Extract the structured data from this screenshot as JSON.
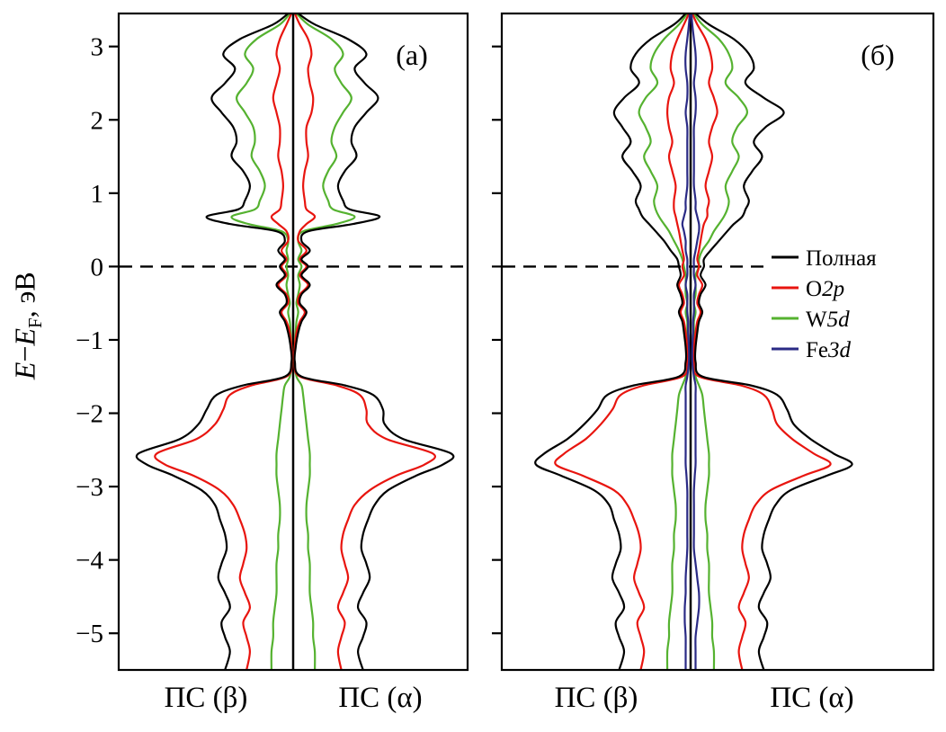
{
  "labels": {
    "ylabel_E": "E",
    "ylabel_minus": "−",
    "ylabel_E2": "E",
    "ylabel_sub": "F",
    "ylabel_unit": ", эВ"
  },
  "chart_data": {
    "type": "line",
    "description_visible": "spin-resolved density of states, two panels",
    "ylabel": "E−EF, эВ",
    "ylim": [
      -5.5,
      3.45
    ],
    "yticks": [
      3,
      2,
      1,
      0,
      -1,
      -2,
      -3,
      -4,
      -5
    ],
    "fermi_line_at": 0,
    "grid": false,
    "legend_position": "right-middle",
    "legend": [
      {
        "key": "total",
        "label": "Полная",
        "orb": "",
        "color": "#000000"
      },
      {
        "key": "o2p",
        "label": "O",
        "orb": "2p",
        "color": "#e8150f"
      },
      {
        "key": "w5d",
        "label": "W",
        "orb": "5d",
        "color": "#55b230"
      },
      {
        "key": "fe3d",
        "label": "Fe",
        "orb": "3d",
        "color": "#2a2a85"
      }
    ],
    "energies": [
      3.45,
      3.3,
      3.1,
      2.9,
      2.7,
      2.5,
      2.3,
      2.1,
      1.9,
      1.7,
      1.5,
      1.3,
      1.1,
      0.9,
      0.78,
      0.68,
      0.58,
      0.48,
      0.35,
      0.22,
      0.1,
      0,
      -0.12,
      -0.25,
      -0.38,
      -0.5,
      -0.62,
      -0.75,
      -0.9,
      -1.1,
      -1.3,
      -1.5,
      -1.62,
      -1.75,
      -1.95,
      -2.15,
      -2.35,
      -2.55,
      -2.7,
      -2.85,
      -3.05,
      -3.25,
      -3.45,
      -3.65,
      -3.85,
      -4.05,
      -4.25,
      -4.45,
      -4.65,
      -4.85,
      -5.05,
      -5.25,
      -5.5
    ],
    "panels": [
      {
        "label": "(а)",
        "xlabel_left": "ПС (β)",
        "xlabel_right": "ПС (α)",
        "series": [
          {
            "key": "w5d",
            "color": "#55b230",
            "beta": [
              0.02,
              0.08,
              0.22,
              0.29,
              0.24,
              0.28,
              0.34,
              0.29,
              0.24,
              0.23,
              0.25,
              0.2,
              0.17,
              0.2,
              0.23,
              0.37,
              0.27,
              0.07,
              0.03,
              0.04,
              0.03,
              0.04,
              0.03,
              0.04,
              0.03,
              0.02,
              0.03,
              0.02,
              0.015,
              0.01,
              0.008,
              0.02,
              0.05,
              0.06,
              0.07,
              0.08,
              0.09,
              0.1,
              0.1,
              0.1,
              0.09,
              0.08,
              0.08,
              0.09,
              0.09,
              0.1,
              0.1,
              0.1,
              0.11,
              0.12,
              0.12,
              0.13,
              0.13
            ],
            "alpha": [
              0.02,
              0.09,
              0.23,
              0.3,
              0.25,
              0.29,
              0.35,
              0.3,
              0.25,
              0.23,
              0.26,
              0.21,
              0.18,
              0.21,
              0.24,
              0.37,
              0.26,
              0.06,
              0.03,
              0.05,
              0.03,
              0.05,
              0.03,
              0.04,
              0.03,
              0.02,
              0.03,
              0.02,
              0.015,
              0.01,
              0.008,
              0.02,
              0.05,
              0.06,
              0.07,
              0.08,
              0.09,
              0.1,
              0.1,
              0.1,
              0.09,
              0.08,
              0.08,
              0.09,
              0.09,
              0.1,
              0.1,
              0.1,
              0.11,
              0.12,
              0.12,
              0.13,
              0.13
            ]
          },
          {
            "key": "o2p",
            "color": "#e8150f",
            "beta": [
              0.01,
              0.04,
              0.08,
              0.1,
              0.08,
              0.1,
              0.12,
              0.1,
              0.08,
              0.08,
              0.09,
              0.07,
              0.06,
              0.07,
              0.08,
              0.13,
              0.09,
              0.04,
              0.03,
              0.07,
              0.04,
              0.07,
              0.04,
              0.09,
              0.04,
              0.03,
              0.07,
              0.04,
              0.02,
              0.01,
              0.008,
              0.04,
              0.25,
              0.38,
              0.42,
              0.47,
              0.58,
              0.82,
              0.77,
              0.6,
              0.44,
              0.36,
              0.32,
              0.29,
              0.28,
              0.3,
              0.32,
              0.29,
              0.26,
              0.3,
              0.28,
              0.26,
              0.28
            ],
            "alpha": [
              0.01,
              0.04,
              0.09,
              0.11,
              0.09,
              0.1,
              0.12,
              0.11,
              0.08,
              0.08,
              0.09,
              0.07,
              0.06,
              0.07,
              0.08,
              0.13,
              0.08,
              0.04,
              0.03,
              0.08,
              0.04,
              0.08,
              0.04,
              0.09,
              0.04,
              0.03,
              0.07,
              0.04,
              0.02,
              0.01,
              0.008,
              0.04,
              0.26,
              0.4,
              0.44,
              0.45,
              0.56,
              0.84,
              0.79,
              0.62,
              0.46,
              0.37,
              0.33,
              0.3,
              0.29,
              0.31,
              0.33,
              0.3,
              0.27,
              0.31,
              0.29,
              0.27,
              0.29
            ]
          },
          {
            "key": "total",
            "color": "#000000",
            "beta": [
              0.03,
              0.12,
              0.32,
              0.42,
              0.35,
              0.41,
              0.49,
              0.43,
              0.36,
              0.34,
              0.37,
              0.3,
              0.26,
              0.29,
              0.33,
              0.52,
              0.38,
              0.1,
              0.05,
              0.09,
              0.05,
              0.08,
              0.05,
              0.1,
              0.05,
              0.04,
              0.08,
              0.05,
              0.03,
              0.015,
              0.01,
              0.05,
              0.3,
              0.46,
              0.52,
              0.57,
              0.68,
              0.93,
              0.88,
              0.72,
              0.55,
              0.47,
              0.44,
              0.41,
              0.4,
              0.43,
              0.45,
              0.41,
              0.38,
              0.43,
              0.41,
              0.38,
              0.41
            ],
            "alpha": [
              0.03,
              0.13,
              0.33,
              0.44,
              0.37,
              0.43,
              0.51,
              0.44,
              0.37,
              0.35,
              0.38,
              0.31,
              0.27,
              0.3,
              0.34,
              0.52,
              0.36,
              0.09,
              0.05,
              0.1,
              0.05,
              0.09,
              0.05,
              0.1,
              0.05,
              0.04,
              0.08,
              0.05,
              0.03,
              0.015,
              0.01,
              0.05,
              0.31,
              0.48,
              0.54,
              0.55,
              0.66,
              0.95,
              0.9,
              0.74,
              0.57,
              0.49,
              0.45,
              0.42,
              0.41,
              0.44,
              0.46,
              0.42,
              0.39,
              0.44,
              0.42,
              0.39,
              0.42
            ]
          }
        ]
      },
      {
        "label": "(б)",
        "xlabel_left": "ПС (β)",
        "xlabel_right": "ПС (α)",
        "series": [
          {
            "key": "w5d",
            "color": "#55b230",
            "beta": [
              0.02,
              0.07,
              0.16,
              0.22,
              0.24,
              0.2,
              0.27,
              0.31,
              0.27,
              0.24,
              0.28,
              0.24,
              0.2,
              0.22,
              0.21,
              0.19,
              0.16,
              0.13,
              0.1,
              0.07,
              0.05,
              0.04,
              0.03,
              0.03,
              0.03,
              0.02,
              0.03,
              0.02,
              0.02,
              0.015,
              0.015,
              0.03,
              0.05,
              0.07,
              0.08,
              0.09,
              0.1,
              0.11,
              0.11,
              0.11,
              0.1,
              0.09,
              0.09,
              0.1,
              0.1,
              0.11,
              0.11,
              0.11,
              0.12,
              0.13,
              0.13,
              0.14,
              0.14
            ],
            "alpha": [
              0.02,
              0.07,
              0.17,
              0.23,
              0.25,
              0.21,
              0.29,
              0.34,
              0.28,
              0.25,
              0.29,
              0.25,
              0.21,
              0.23,
              0.22,
              0.2,
              0.17,
              0.14,
              0.11,
              0.07,
              0.05,
              0.05,
              0.03,
              0.03,
              0.03,
              0.02,
              0.03,
              0.02,
              0.02,
              0.015,
              0.015,
              0.03,
              0.05,
              0.07,
              0.08,
              0.09,
              0.1,
              0.11,
              0.11,
              0.11,
              0.1,
              0.09,
              0.09,
              0.1,
              0.1,
              0.11,
              0.11,
              0.11,
              0.12,
              0.13,
              0.13,
              0.14,
              0.14
            ]
          },
          {
            "key": "o2p",
            "color": "#e8150f",
            "beta": [
              0.01,
              0.04,
              0.08,
              0.11,
              0.12,
              0.1,
              0.13,
              0.14,
              0.13,
              0.11,
              0.13,
              0.11,
              0.09,
              0.1,
              0.1,
              0.09,
              0.08,
              0.07,
              0.06,
              0.05,
              0.04,
              0.05,
              0.04,
              0.07,
              0.05,
              0.04,
              0.06,
              0.04,
              0.03,
              0.02,
              0.02,
              0.05,
              0.28,
              0.42,
              0.47,
              0.54,
              0.63,
              0.76,
              0.81,
              0.65,
              0.46,
              0.38,
              0.34,
              0.31,
              0.3,
              0.32,
              0.34,
              0.31,
              0.28,
              0.32,
              0.3,
              0.28,
              0.3
            ],
            "alpha": [
              0.01,
              0.04,
              0.09,
              0.12,
              0.13,
              0.11,
              0.14,
              0.16,
              0.13,
              0.11,
              0.13,
              0.11,
              0.09,
              0.11,
              0.1,
              0.1,
              0.08,
              0.07,
              0.06,
              0.05,
              0.04,
              0.05,
              0.04,
              0.07,
              0.05,
              0.04,
              0.06,
              0.04,
              0.03,
              0.02,
              0.02,
              0.05,
              0.3,
              0.44,
              0.49,
              0.52,
              0.61,
              0.74,
              0.84,
              0.68,
              0.48,
              0.39,
              0.35,
              0.32,
              0.31,
              0.33,
              0.35,
              0.32,
              0.29,
              0.33,
              0.31,
              0.29,
              0.31
            ]
          },
          {
            "key": "fe3d",
            "color": "#2a2a85",
            "beta": [
              0.005,
              0.01,
              0.02,
              0.03,
              0.03,
              0.02,
              0.02,
              0.03,
              0.02,
              0.02,
              0.02,
              0.02,
              0.02,
              0.03,
              0.03,
              0.04,
              0.05,
              0.04,
              0.03,
              0.03,
              0.02,
              0.02,
              0.02,
              0.03,
              0.02,
              0.02,
              0.02,
              0.015,
              0.015,
              0.01,
              0.01,
              0.02,
              0.03,
              0.03,
              0.03,
              0.03,
              0.03,
              0.03,
              0.03,
              0.025,
              0.02,
              0.02,
              0.02,
              0.02,
              0.02,
              0.025,
              0.03,
              0.03,
              0.035,
              0.035,
              0.03,
              0.03,
              0.03
            ],
            "alpha": [
              0.005,
              0.01,
              0.02,
              0.03,
              0.03,
              0.02,
              0.03,
              0.03,
              0.02,
              0.02,
              0.02,
              0.02,
              0.02,
              0.03,
              0.03,
              0.04,
              0.05,
              0.05,
              0.04,
              0.03,
              0.02,
              0.02,
              0.02,
              0.03,
              0.02,
              0.02,
              0.02,
              0.015,
              0.015,
              0.01,
              0.01,
              0.02,
              0.03,
              0.03,
              0.03,
              0.03,
              0.03,
              0.03,
              0.03,
              0.025,
              0.02,
              0.02,
              0.02,
              0.02,
              0.02,
              0.03,
              0.04,
              0.05,
              0.05,
              0.04,
              0.03,
              0.03,
              0.03
            ]
          },
          {
            "key": "total",
            "color": "#000000",
            "beta": [
              0.03,
              0.1,
              0.24,
              0.33,
              0.36,
              0.31,
              0.4,
              0.46,
              0.41,
              0.36,
              0.41,
              0.35,
              0.3,
              0.33,
              0.31,
              0.29,
              0.25,
              0.21,
              0.16,
              0.12,
              0.08,
              0.07,
              0.06,
              0.08,
              0.06,
              0.05,
              0.07,
              0.05,
              0.04,
              0.03,
              0.03,
              0.07,
              0.34,
              0.5,
              0.56,
              0.64,
              0.74,
              0.88,
              0.93,
              0.78,
              0.58,
              0.49,
              0.46,
              0.43,
              0.42,
              0.45,
              0.47,
              0.43,
              0.4,
              0.45,
              0.43,
              0.4,
              0.43
            ],
            "alpha": [
              0.03,
              0.11,
              0.26,
              0.35,
              0.38,
              0.33,
              0.44,
              0.56,
              0.45,
              0.38,
              0.43,
              0.37,
              0.32,
              0.35,
              0.33,
              0.31,
              0.26,
              0.22,
              0.17,
              0.12,
              0.08,
              0.08,
              0.06,
              0.09,
              0.06,
              0.05,
              0.07,
              0.05,
              0.04,
              0.03,
              0.03,
              0.07,
              0.36,
              0.52,
              0.58,
              0.62,
              0.72,
              0.86,
              0.97,
              0.82,
              0.6,
              0.51,
              0.47,
              0.44,
              0.43,
              0.46,
              0.48,
              0.44,
              0.41,
              0.46,
              0.44,
              0.41,
              0.44
            ]
          }
        ]
      }
    ]
  }
}
